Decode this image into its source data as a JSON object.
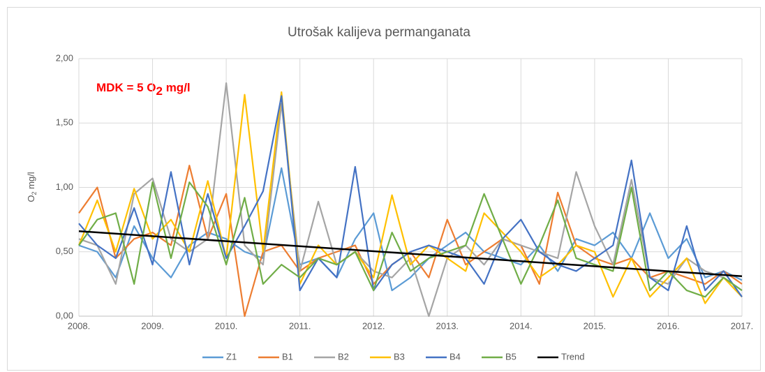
{
  "chart_data": {
    "type": "line",
    "title": "Utrošak kalijeva permanganata",
    "y_label": {
      "main": "O",
      "sub": "2",
      "rest": " mg/l"
    },
    "annotation": {
      "main": "MDK = 5 O",
      "sub": "2",
      "rest": " mg/l"
    },
    "xlim": [
      2008,
      2017
    ],
    "xticks": [
      {
        "value": 2008,
        "label": "2008."
      },
      {
        "value": 2009,
        "label": "2009."
      },
      {
        "value": 2010,
        "label": "2010."
      },
      {
        "value": 2011,
        "label": "2011."
      },
      {
        "value": 2012,
        "label": "2012."
      },
      {
        "value": 2013,
        "label": "2013."
      },
      {
        "value": 2014,
        "label": "2014."
      },
      {
        "value": 2015,
        "label": "2015."
      },
      {
        "value": 2016,
        "label": "2016."
      },
      {
        "value": 2017,
        "label": "2017."
      }
    ],
    "ylim": [
      0,
      2
    ],
    "yticks": [
      {
        "value": 0,
        "label": "0,00"
      },
      {
        "value": 0.5,
        "label": "0,50"
      },
      {
        "value": 1,
        "label": "1,00"
      },
      {
        "value": 1.5,
        "label": "1,50"
      },
      {
        "value": 2,
        "label": "2,00"
      }
    ],
    "grid": true,
    "legend": "bottom",
    "x": [
      2008,
      2008.25,
      2008.5,
      2008.75,
      2009,
      2009.25,
      2009.5,
      2009.75,
      2010,
      2010.25,
      2010.5,
      2010.75,
      2011,
      2011.25,
      2011.5,
      2011.75,
      2012,
      2012.25,
      2012.5,
      2012.75,
      2013,
      2013.25,
      2013.5,
      2013.75,
      2014,
      2014.25,
      2014.5,
      2014.75,
      2015,
      2015.25,
      2015.5,
      2015.75,
      2016,
      2016.25,
      2016.5,
      2016.75,
      2017
    ],
    "series": [
      {
        "name": "Z1",
        "color": "#5b9bd5",
        "values": [
          0.55,
          0.5,
          0.3,
          0.7,
          0.45,
          0.3,
          0.55,
          0.65,
          0.6,
          0.5,
          0.45,
          1.15,
          0.4,
          0.45,
          0.3,
          0.6,
          0.8,
          0.2,
          0.3,
          0.45,
          0.55,
          0.65,
          0.5,
          0.45,
          0.4,
          0.55,
          0.35,
          0.6,
          0.55,
          0.65,
          0.45,
          0.8,
          0.45,
          0.6,
          0.3,
          0.35,
          0.28
        ]
      },
      {
        "name": "B1",
        "color": "#ed7d31",
        "values": [
          0.8,
          1.0,
          0.45,
          0.6,
          0.65,
          0.55,
          1.17,
          0.6,
          0.95,
          0.0,
          0.5,
          0.55,
          0.35,
          0.45,
          0.5,
          0.55,
          0.25,
          0.4,
          0.5,
          0.3,
          0.75,
          0.4,
          0.5,
          0.6,
          0.55,
          0.25,
          0.96,
          0.55,
          0.45,
          0.4,
          0.45,
          0.3,
          0.35,
          0.3,
          0.25,
          0.35,
          0.25
        ]
      },
      {
        "name": "B2",
        "color": "#a5a5a5",
        "values": [
          0.6,
          0.55,
          0.25,
          0.95,
          1.07,
          0.6,
          0.5,
          0.6,
          1.81,
          0.55,
          0.4,
          1.65,
          0.35,
          0.89,
          0.4,
          0.5,
          0.35,
          0.3,
          0.45,
          0.0,
          0.45,
          0.55,
          0.4,
          0.6,
          0.55,
          0.5,
          0.45,
          1.12,
          0.7,
          0.4,
          1.06,
          0.3,
          0.25,
          0.45,
          0.35,
          0.3,
          0.2
        ]
      },
      {
        "name": "B3",
        "color": "#ffc000",
        "values": [
          0.55,
          0.9,
          0.5,
          0.99,
          0.6,
          0.75,
          0.5,
          1.05,
          0.45,
          1.72,
          0.5,
          1.74,
          0.25,
          0.55,
          0.4,
          0.5,
          0.3,
          0.94,
          0.4,
          0.55,
          0.45,
          0.35,
          0.8,
          0.65,
          0.5,
          0.3,
          0.4,
          0.55,
          0.5,
          0.15,
          0.45,
          0.15,
          0.3,
          0.45,
          0.1,
          0.3,
          0.15
        ]
      },
      {
        "name": "B4",
        "color": "#4472c4",
        "values": [
          0.72,
          0.55,
          0.45,
          0.84,
          0.4,
          1.12,
          0.4,
          0.95,
          0.45,
          0.7,
          0.97,
          1.71,
          0.2,
          0.45,
          0.3,
          1.16,
          0.2,
          0.4,
          0.5,
          0.55,
          0.5,
          0.45,
          0.25,
          0.6,
          0.75,
          0.5,
          0.4,
          0.35,
          0.45,
          0.55,
          1.21,
          0.3,
          0.2,
          0.7,
          0.2,
          0.35,
          0.15
        ]
      },
      {
        "name": "B5",
        "color": "#70ad47",
        "values": [
          0.55,
          0.75,
          0.8,
          0.25,
          1.04,
          0.45,
          1.04,
          0.85,
          0.4,
          0.92,
          0.25,
          0.4,
          0.3,
          0.45,
          0.4,
          0.5,
          0.2,
          0.65,
          0.35,
          0.45,
          0.5,
          0.55,
          0.95,
          0.6,
          0.25,
          0.55,
          0.9,
          0.45,
          0.4,
          0.35,
          1.0,
          0.2,
          0.35,
          0.2,
          0.15,
          0.3,
          0.2
        ]
      }
    ],
    "trend": {
      "name": "Trend",
      "color": "#000000",
      "x": [
        2008,
        2017
      ],
      "values": [
        0.66,
        0.31
      ]
    }
  }
}
